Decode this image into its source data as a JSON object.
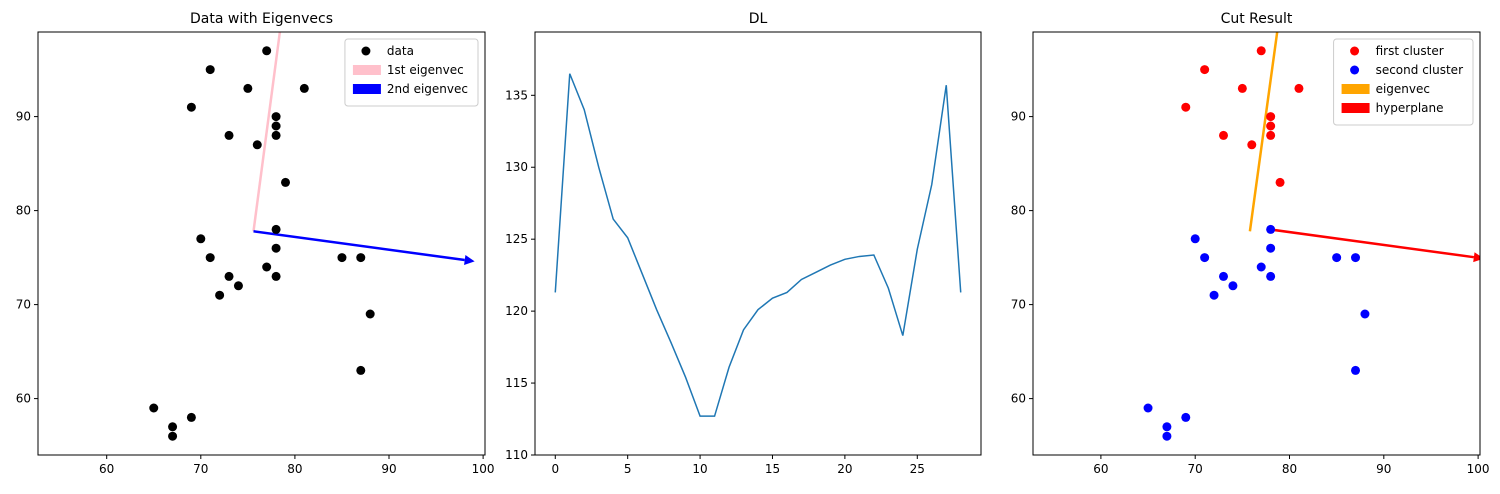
{
  "chart_data": [
    {
      "type": "scatter",
      "title": "Data with Eigenvecs",
      "series": [
        {
          "name": "data",
          "color": "#000000",
          "x": [
            77,
            71,
            75,
            81,
            69,
            78,
            78,
            78,
            73,
            76,
            79,
            78,
            70,
            78,
            71,
            85,
            87,
            77,
            73,
            78,
            74,
            72,
            88,
            87,
            65,
            67,
            67,
            69
          ],
          "y": [
            97,
            95,
            93,
            93,
            91,
            90,
            89,
            88,
            88,
            87,
            83,
            78,
            77,
            76,
            75,
            75,
            75,
            74,
            73,
            73,
            72,
            71,
            69,
            63,
            59,
            57,
            56,
            58
          ]
        }
      ],
      "arrows": [
        {
          "name": "1st eigenvec",
          "color": "#ffc0cb",
          "x": [
            75.6,
            78.6
          ],
          "y": [
            77.8,
            100.5
          ]
        },
        {
          "name": "2nd eigenvec",
          "color": "#0000ff",
          "x": [
            75.6,
            99.1
          ],
          "y": [
            77.8,
            74.6
          ]
        }
      ],
      "xlim": [
        52.7,
        100.2
      ],
      "ylim": [
        54,
        99
      ],
      "xticks": [
        60,
        70,
        80,
        90,
        100
      ],
      "yticks": [
        60,
        70,
        80,
        90
      ],
      "legend": "upper right"
    },
    {
      "type": "line",
      "title": "DL",
      "x": [
        0,
        1,
        2,
        3,
        4,
        5,
        6,
        7,
        8,
        9,
        10,
        11,
        12,
        13,
        14,
        15,
        16,
        17,
        18,
        19,
        20,
        21,
        22,
        23,
        24,
        25,
        26,
        27,
        28
      ],
      "series": [
        {
          "color": "#1f77b4",
          "values": [
            121.3,
            136.5,
            134.0,
            130.0,
            126.4,
            125.1,
            122.6,
            120.1,
            117.8,
            115.4,
            112.7,
            112.7,
            116.1,
            118.7,
            120.1,
            120.9,
            121.3,
            122.2,
            122.7,
            123.2,
            123.6,
            123.8,
            123.9,
            121.6,
            118.3,
            124.3,
            128.8,
            135.7,
            121.3
          ]
        }
      ],
      "xlim": [
        -1.4,
        29.4
      ],
      "ylim": [
        110,
        139.4
      ],
      "xticks": [
        0,
        5,
        10,
        15,
        20,
        25
      ],
      "yticks": [
        110,
        115,
        120,
        125,
        130,
        135
      ]
    },
    {
      "type": "scatter",
      "title": "Cut Result",
      "series": [
        {
          "name": "first cluster",
          "color": "#ff0000",
          "x": [
            77,
            71,
            75,
            81,
            69,
            78,
            78,
            78,
            73,
            76,
            79
          ],
          "y": [
            97,
            95,
            93,
            93,
            91,
            90,
            89,
            88,
            88,
            87,
            83
          ]
        },
        {
          "name": "second cluster",
          "color": "#0000ff",
          "x": [
            78,
            70,
            78,
            71,
            85,
            87,
            77,
            73,
            78,
            74,
            72,
            88,
            87,
            65,
            67,
            67,
            69
          ],
          "y": [
            78,
            77,
            76,
            75,
            75,
            75,
            74,
            73,
            73,
            72,
            71,
            69,
            63,
            59,
            57,
            56,
            58
          ]
        }
      ],
      "arrows": [
        {
          "name": "eigenvec",
          "color": "#ffa500",
          "x": [
            75.8,
            78.9
          ],
          "y": [
            77.8,
            100.5
          ]
        },
        {
          "name": "hyperplane",
          "color": "#ff0000",
          "x": [
            77.9,
            100.6
          ],
          "y": [
            78.0,
            74.9
          ]
        }
      ],
      "xlim": [
        52.8,
        100.2
      ],
      "ylim": [
        54,
        99
      ],
      "xticks": [
        60,
        70,
        80,
        90,
        100
      ],
      "yticks": [
        60,
        70,
        80,
        90
      ],
      "legend": "upper right"
    }
  ]
}
